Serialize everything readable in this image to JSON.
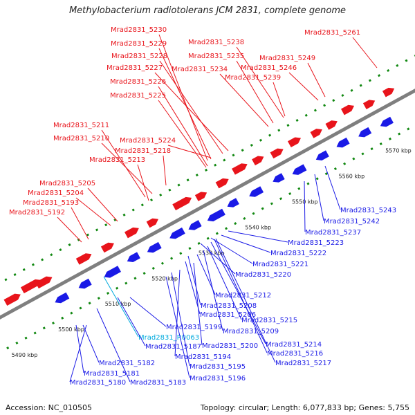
{
  "title": "Methylobacterium radiotolerans JCM 2831, complete genome",
  "footer": {
    "accession": "Accession: NC_010505",
    "topology": "Topology: circular; Length: 6,077,833 bp; Genes: 5,755"
  },
  "colors": {
    "top_strand": "#e8141b",
    "bottom_strand": "#1a1ae6",
    "rna_label": "#00aadd",
    "axis": "#7f7f7f",
    "dots": "#118811"
  },
  "kbp_ticks": [
    "5490 kbp",
    "5500 kbp",
    "5510 kbp",
    "5520 kbp",
    "5530 kbp",
    "5540 kbp",
    "5550 kbp",
    "5560 kbp",
    "5570 kbp"
  ],
  "top_labels": [
    "Mrad2831_5230",
    "Mrad2831_5229",
    "Mrad2831_5228",
    "Mrad2831_5227",
    "Mrad2831_5226",
    "Mrad2831_5225",
    "Mrad2831_5238",
    "Mrad2831_5235",
    "Mrad2831_5234",
    "Mrad2831_5249",
    "Mrad2831_5246",
    "Mrad2831_5239",
    "Mrad2831_5261",
    "Mrad2831_5211",
    "Mrad2831_5210",
    "Mrad2831_5224",
    "Mrad2831_5218",
    "Mrad2831_5213",
    "Mrad2831_5205",
    "Mrad2831_5204",
    "Mrad2831_5193",
    "Mrad2831_5192"
  ],
  "bottom_labels": [
    "Mrad2831_5243",
    "Mrad2831_5242",
    "Mrad2831_5237",
    "Mrad2831_5223",
    "Mrad2831_5222",
    "Mrad2831_5221",
    "Mrad2831_5220",
    "Mrad2831_5212",
    "Mrad2831_5208",
    "Mrad2831_5206",
    "Mrad2831_5215",
    "Mrad2831_5209",
    "Mrad2831_5199",
    "Mrad2831_R0063",
    "Mrad2831_5187",
    "Mrad2831_5200",
    "Mrad2831_5214",
    "Mrad2831_5194",
    "Mrad2831_5216",
    "Mrad2831_5195",
    "Mrad2831_5217",
    "Mrad2831_5196",
    "Mrad2831_5182",
    "Mrad2831_5181",
    "Mrad2831_5180",
    "Mrad2831_5183"
  ]
}
